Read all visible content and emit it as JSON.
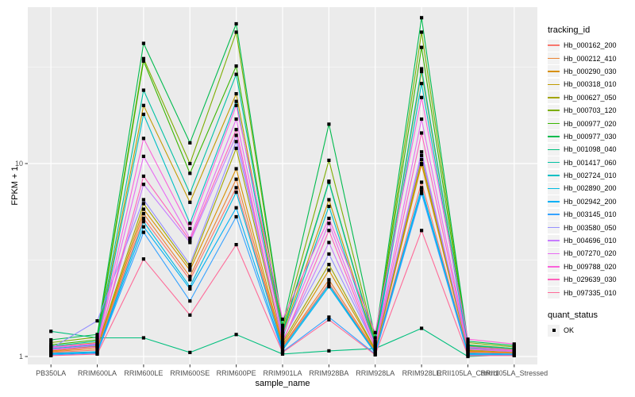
{
  "figure": {
    "background": "#FFFFFF",
    "panel_background": "#EBEBEB",
    "gridline_color": "#FFFFFF",
    "tick_color": "#333333",
    "axis_text_color": "#4D4D4D",
    "point_color": "#000000"
  },
  "chart_data": {
    "type": "line",
    "title": "",
    "xlabel": "sample_name",
    "ylabel": "FPKM + 1",
    "y_scale": "log10",
    "y_ticks": [
      1,
      10
    ],
    "y_minor_ticks": [
      3.162,
      31.623
    ],
    "ylim": [
      0.91,
      64
    ],
    "grid": true,
    "legend_position": "right",
    "point_shape": "filled-square",
    "categories": [
      "PB350LA",
      "RRIM600LA",
      "RRIM600LE",
      "RRIM600SE",
      "RRIM600PE",
      "RRIM901LA",
      "RRIM928BA",
      "RRIM928LA",
      "RRIM928LE",
      "RRII105LA_Control",
      "RRII105LA_Stressed"
    ],
    "series": [
      {
        "name": "Hb_000162_200",
        "color": "#F8766D",
        "values": [
          1.05,
          1.08,
          5.2,
          2.5,
          7.5,
          1.12,
          2.4,
          1.06,
          8.0,
          1.05,
          1.04
        ]
      },
      {
        "name": "Hb_000212_410",
        "color": "#EA8331",
        "values": [
          1.06,
          1.1,
          5.5,
          2.6,
          8.3,
          1.13,
          2.5,
          1.07,
          9.9,
          1.06,
          1.05
        ]
      },
      {
        "name": "Hb_000290_030",
        "color": "#D89000",
        "values": [
          1.07,
          1.12,
          5.8,
          2.8,
          9.4,
          1.15,
          2.8,
          1.08,
          10.0,
          1.07,
          1.05
        ]
      },
      {
        "name": "Hb_000318_010",
        "color": "#C09B00",
        "values": [
          1.12,
          1.18,
          20.0,
          6.3,
          23.0,
          1.3,
          6.5,
          1.15,
          30.0,
          1.13,
          1.09
        ]
      },
      {
        "name": "Hb_000627_050",
        "color": "#A3A500",
        "values": [
          1.08,
          1.13,
          6.2,
          2.9,
          12.0,
          1.18,
          3.0,
          1.09,
          10.5,
          1.08,
          1.06
        ]
      },
      {
        "name": "Hb_000703_120",
        "color": "#7CAE00",
        "values": [
          1.18,
          1.26,
          35.0,
          10.0,
          48.0,
          1.4,
          10.4,
          1.2,
          48.0,
          1.18,
          1.12
        ]
      },
      {
        "name": "Hb_000977_020",
        "color": "#39B600",
        "values": [
          1.15,
          1.22,
          34.0,
          8.9,
          32.0,
          1.35,
          8.1,
          1.18,
          40.0,
          1.15,
          1.1
        ]
      },
      {
        "name": "Hb_000977_030",
        "color": "#00BB4E",
        "values": [
          1.22,
          1.3,
          42.0,
          12.8,
          53.0,
          1.45,
          16.0,
          1.25,
          57.0,
          1.2,
          1.14
        ]
      },
      {
        "name": "Hb_001098_040",
        "color": "#00BF7D",
        "values": [
          1.35,
          1.25,
          1.25,
          1.05,
          1.3,
          1.03,
          1.07,
          1.1,
          1.4,
          1.0,
          1.02
        ]
      },
      {
        "name": "Hb_001417_060",
        "color": "#00C1A3",
        "values": [
          1.13,
          1.2,
          24.0,
          7.0,
          29.0,
          1.32,
          8.0,
          1.16,
          31.0,
          1.14,
          1.1
        ]
      },
      {
        "name": "Hb_002724_010",
        "color": "#00BFC4",
        "values": [
          1.1,
          1.15,
          18.0,
          4.9,
          21.0,
          1.25,
          6.0,
          1.13,
          26.0,
          1.11,
          1.08
        ]
      },
      {
        "name": "Hb_002890_200",
        "color": "#00BAE0",
        "values": [
          1.04,
          1.06,
          5.0,
          2.3,
          7.1,
          1.1,
          2.35,
          1.05,
          7.5,
          1.04,
          1.03
        ]
      },
      {
        "name": "Hb_002942_200",
        "color": "#00B0F6",
        "values": [
          1.03,
          1.05,
          4.7,
          2.24,
          5.9,
          1.08,
          2.3,
          1.04,
          7.2,
          1.03,
          1.02
        ]
      },
      {
        "name": "Hb_003145_010",
        "color": "#35A2FF",
        "values": [
          1.02,
          1.04,
          4.4,
          1.94,
          5.3,
          1.06,
          1.6,
          1.03,
          7.0,
          1.02,
          1.02
        ]
      },
      {
        "name": "Hb_003580_050",
        "color": "#9590FF",
        "values": [
          1.1,
          1.53,
          6.5,
          3.0,
          13.0,
          1.22,
          3.4,
          1.12,
          11.0,
          1.09,
          1.07
        ]
      },
      {
        "name": "Hb_004696_010",
        "color": "#C77CFF",
        "values": [
          1.09,
          1.14,
          7.8,
          3.9,
          14.0,
          1.2,
          3.9,
          1.11,
          11.5,
          1.09,
          1.06
        ]
      },
      {
        "name": "Hb_007270_020",
        "color": "#E76BF3",
        "values": [
          1.11,
          1.16,
          10.9,
          4.1,
          17.0,
          1.28,
          4.9,
          1.14,
          17.0,
          1.12,
          1.08
        ]
      },
      {
        "name": "Hb_009788_020",
        "color": "#FA62DB",
        "values": [
          1.12,
          1.17,
          13.5,
          4.6,
          20.0,
          1.56,
          5.2,
          1.33,
          22.0,
          1.23,
          1.16
        ]
      },
      {
        "name": "Hb_029639_030",
        "color": "#FF62BC",
        "values": [
          1.08,
          1.12,
          8.6,
          4.0,
          15.0,
          1.18,
          4.5,
          1.1,
          14.4,
          1.1,
          1.07
        ]
      },
      {
        "name": "Hb_097335_010",
        "color": "#FF6A98",
        "values": [
          1.01,
          1.03,
          3.2,
          1.64,
          3.8,
          1.05,
          1.55,
          1.02,
          4.5,
          1.01,
          1.01
        ]
      }
    ]
  },
  "legend": {
    "tracking_title": "tracking_id",
    "quant_title": "quant_status",
    "quant_items": [
      {
        "label": "OK"
      }
    ]
  }
}
